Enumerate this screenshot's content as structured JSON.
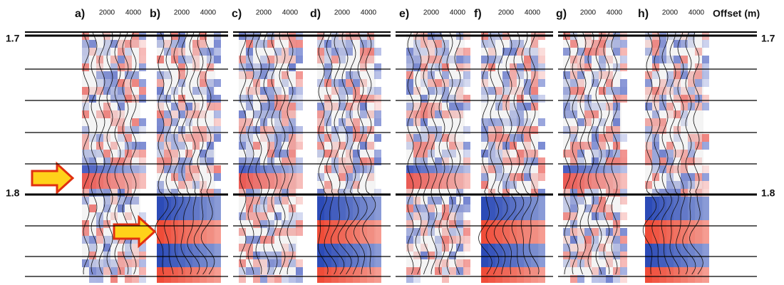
{
  "axis_label": "Offset (m)",
  "time_left": [
    1.7,
    1.8
  ],
  "time_right": [
    1.7,
    1.8
  ],
  "panels": [
    {
      "label": "a)",
      "ticks": [
        2000,
        4000
      ]
    },
    {
      "label": "b)",
      "ticks": [
        2000,
        4000
      ]
    },
    {
      "label": "c)",
      "ticks": [
        2000,
        4000
      ]
    },
    {
      "label": "d)",
      "ticks": [
        2000,
        4000
      ]
    },
    {
      "label": "e)",
      "ticks": [
        2000,
        4000
      ]
    },
    {
      "label": "f)",
      "ticks": [
        2000,
        4000
      ]
    },
    {
      "label": "g)",
      "ticks": [
        2000,
        4000
      ]
    },
    {
      "label": "h)",
      "ticks": [
        2000,
        4000
      ]
    }
  ]
}
